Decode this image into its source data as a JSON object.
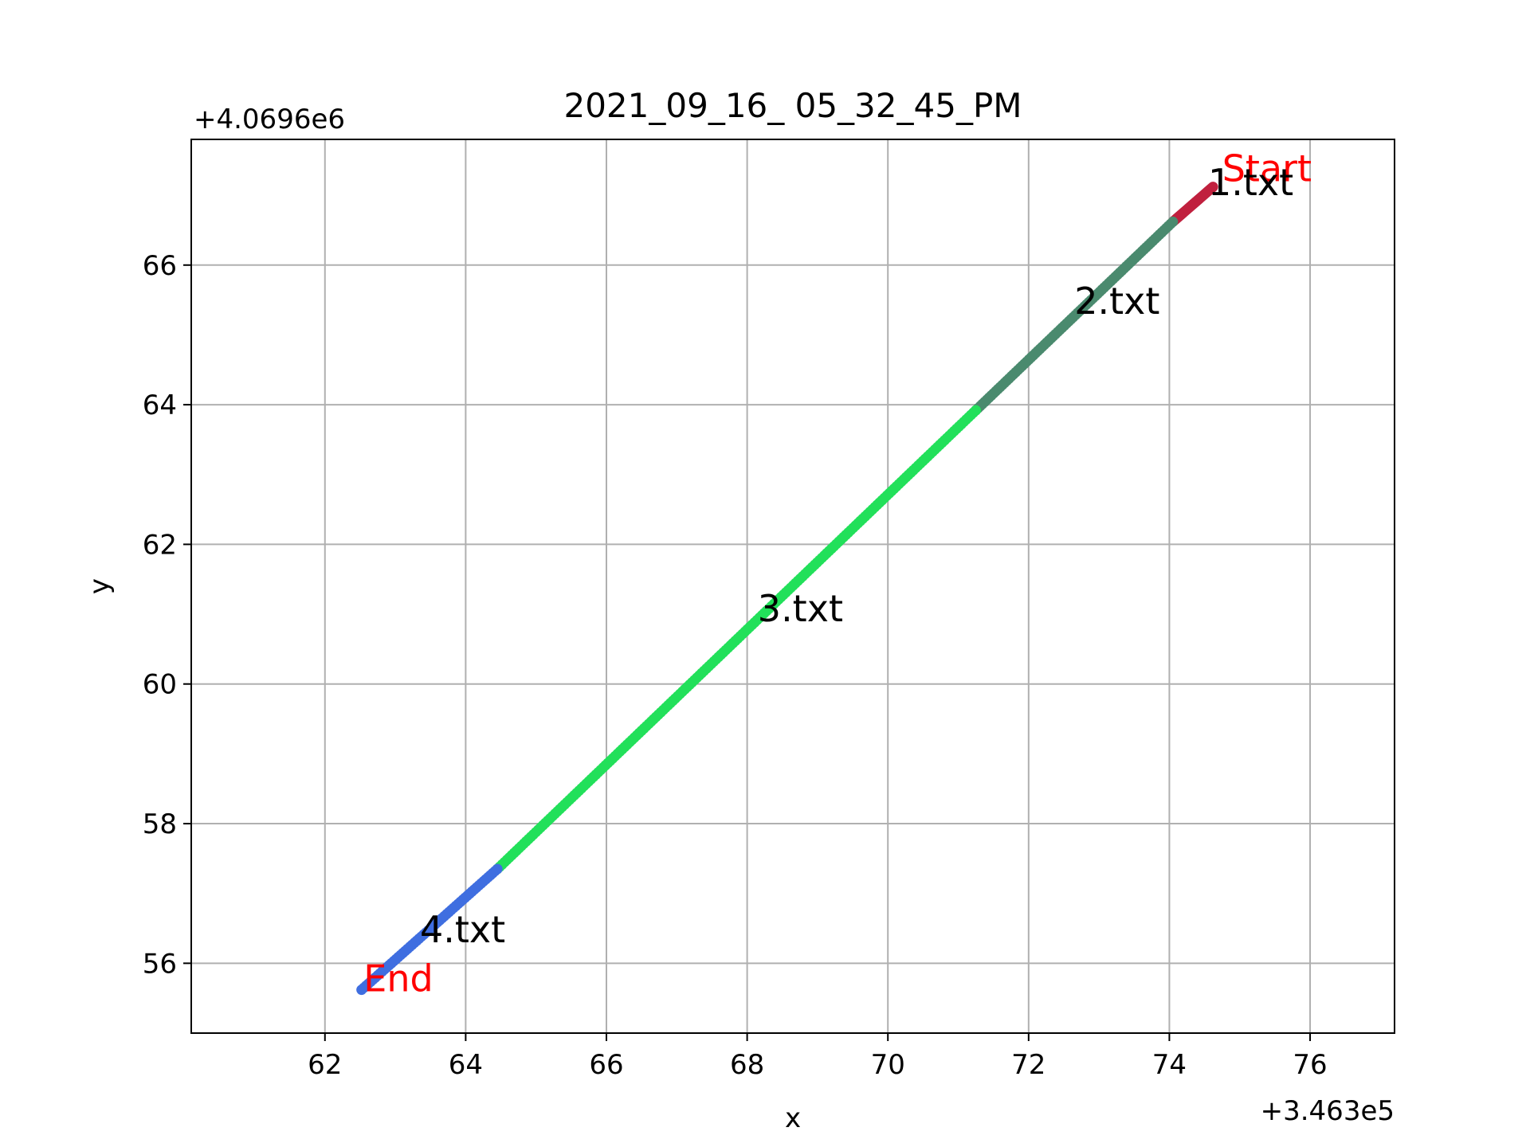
{
  "chart_data": {
    "type": "scatter",
    "title": "2021_09_16_ 05_32_45_PM",
    "xlabel": "x",
    "ylabel": "y",
    "x_offset_label": "+3.463e5",
    "y_offset_label": "+4.0696e6",
    "xlim": [
      60.1,
      77.2
    ],
    "ylim": [
      55.0,
      67.8
    ],
    "x_ticks": [
      62,
      64,
      66,
      68,
      70,
      72,
      74,
      76
    ],
    "y_ticks": [
      56,
      58,
      60,
      62,
      64,
      66
    ],
    "grid": true,
    "series": [
      {
        "name": "1.txt",
        "color": "#c0203e",
        "x_start": 74.62,
        "y_start": 67.12,
        "x_end": 74.05,
        "y_end": 66.62,
        "n": 30
      },
      {
        "name": "2.txt",
        "color": "#4a8a6e",
        "x_start": 74.05,
        "y_start": 66.62,
        "x_end": 71.25,
        "y_end": 63.92,
        "n": 90
      },
      {
        "name": "3.txt",
        "color": "#22e05a",
        "x_start": 71.25,
        "y_start": 63.92,
        "x_end": 64.45,
        "y_end": 57.35,
        "n": 200
      },
      {
        "name": "4.txt",
        "color": "#3f6ee0",
        "x_start": 64.45,
        "y_start": 57.35,
        "x_end": 62.52,
        "y_end": 55.62,
        "n": 60
      }
    ],
    "annotations": [
      {
        "text": "Start",
        "x": 74.75,
        "y": 67.2,
        "color": "#ff0000"
      },
      {
        "text": "1.txt",
        "x": 74.55,
        "y": 67.0,
        "color": "#000000"
      },
      {
        "text": "2.txt",
        "x": 72.65,
        "y": 65.3,
        "color": "#000000"
      },
      {
        "text": "3.txt",
        "x": 68.15,
        "y": 60.9,
        "color": "#000000"
      },
      {
        "text": "4.txt",
        "x": 63.35,
        "y": 56.3,
        "color": "#000000"
      },
      {
        "text": "End",
        "x": 62.55,
        "y": 55.6,
        "color": "#ff0000"
      }
    ]
  }
}
